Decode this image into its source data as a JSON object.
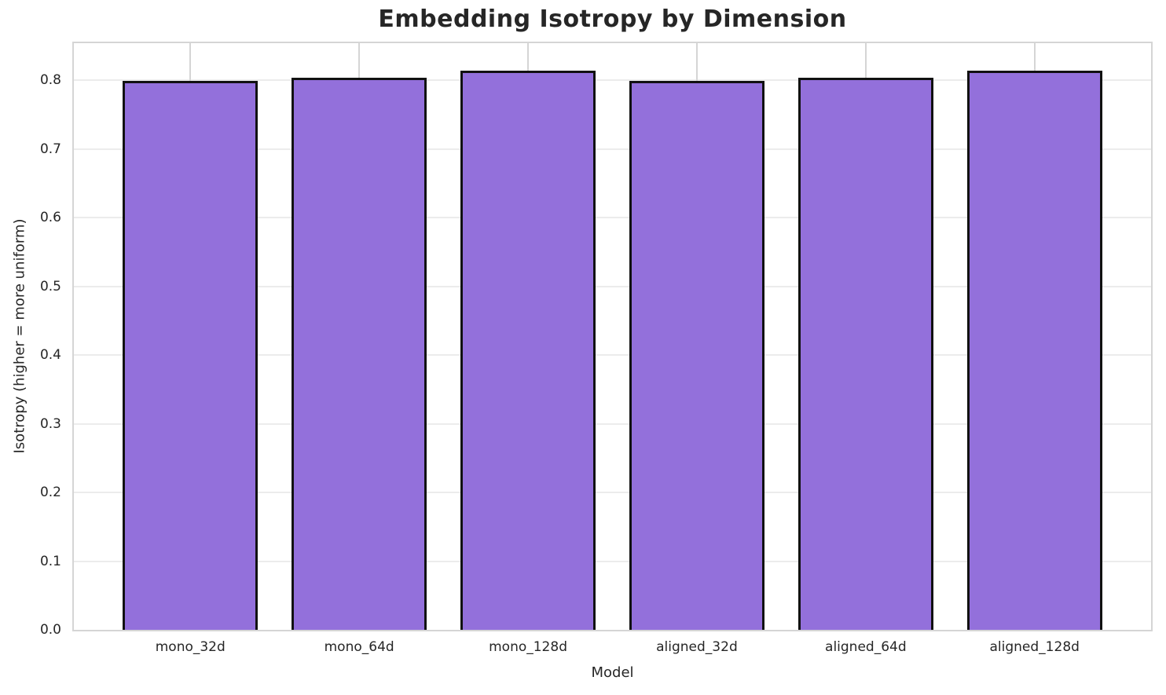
{
  "chart_data": {
    "type": "bar",
    "title": "Embedding Isotropy by Dimension",
    "xlabel": "Model",
    "ylabel": "Isotropy (higher = more uniform)",
    "categories": [
      "mono_32d",
      "mono_64d",
      "mono_128d",
      "aligned_32d",
      "aligned_64d",
      "aligned_128d"
    ],
    "values": [
      0.799,
      0.804,
      0.814,
      0.799,
      0.804,
      0.814
    ],
    "ylim": [
      0,
      0.854
    ],
    "yticks": [
      0.0,
      0.1,
      0.2,
      0.3,
      0.4,
      0.5,
      0.6,
      0.7,
      0.8
    ],
    "ytick_labels": [
      "0.0",
      "0.1",
      "0.2",
      "0.3",
      "0.4",
      "0.5",
      "0.6",
      "0.7",
      "0.8"
    ],
    "grid": true,
    "legend": null,
    "bar_width_fraction": 0.8,
    "colors": {
      "bar_fill": "#9370DB",
      "bar_edge": "#111111",
      "grid_horizontal": "#ececec",
      "grid_vertical": "#d5d5d5",
      "spine": "#d5d5d5",
      "text": "#262626"
    }
  }
}
